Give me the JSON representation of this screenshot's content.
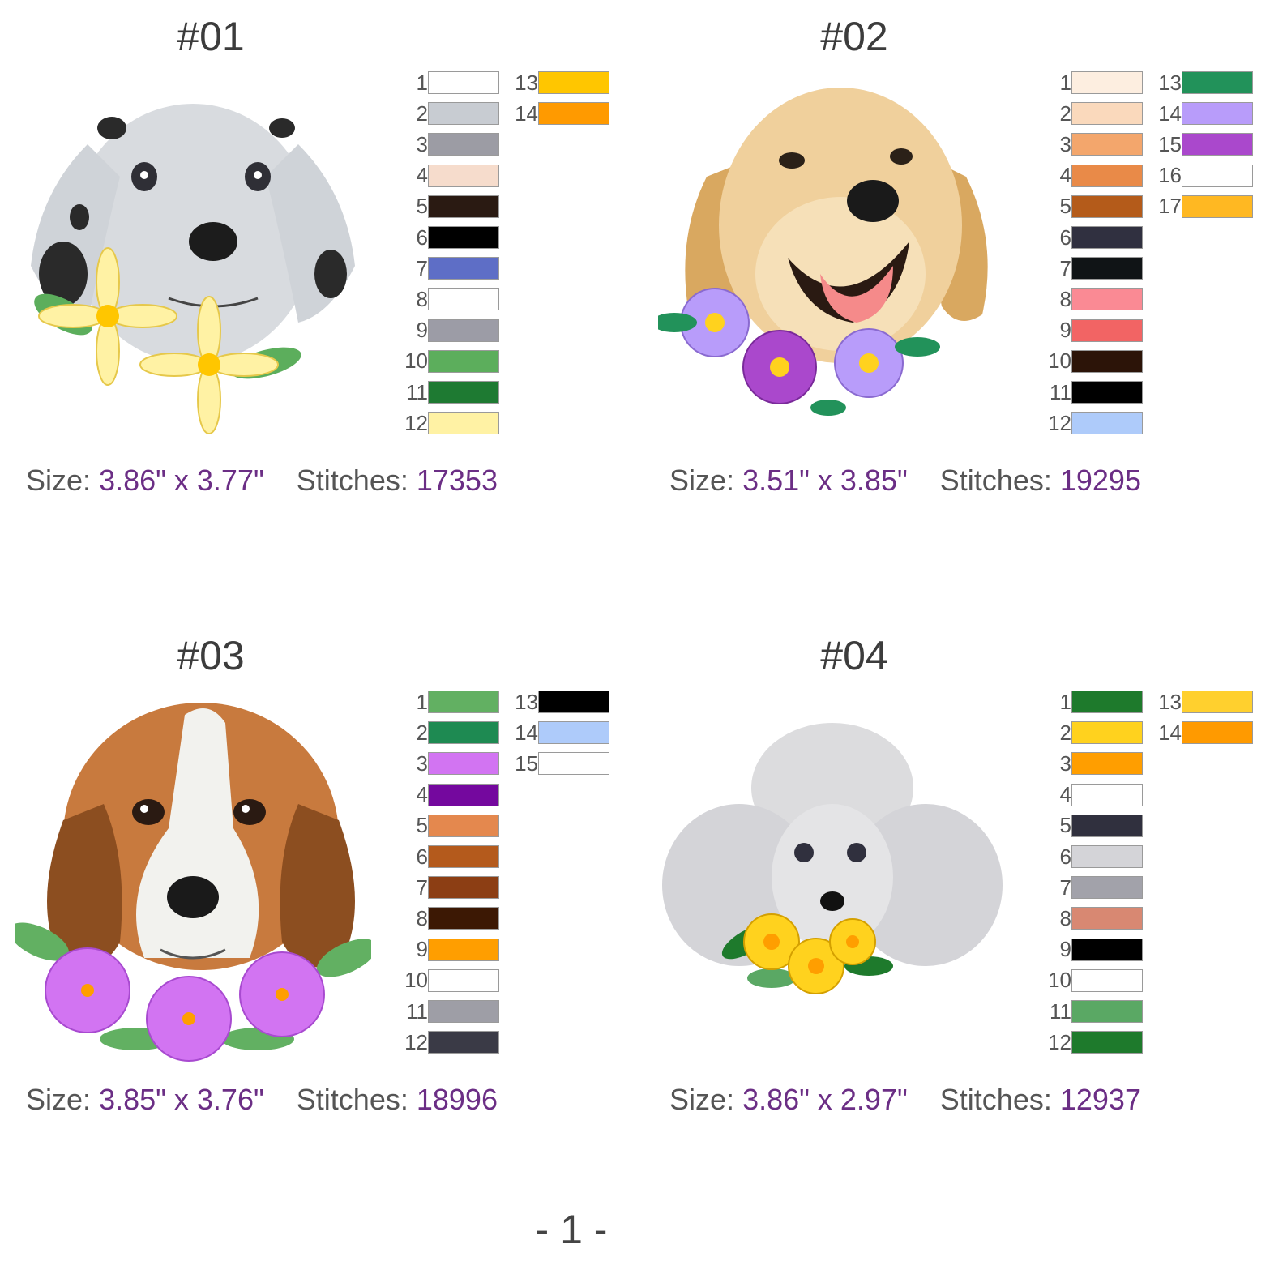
{
  "designs": [
    {
      "id": "#01",
      "art": "dalmatian-embroidery",
      "size_label": "Size:",
      "size_value": "3.86\" x 3.77\"",
      "stitches_label": "Stitches:",
      "stitches_value": "17353",
      "colors": [
        {
          "n": "1",
          "hex": "#ffffff"
        },
        {
          "n": "2",
          "hex": "#c8ccd2"
        },
        {
          "n": "3",
          "hex": "#9c9ca4"
        },
        {
          "n": "4",
          "hex": "#f6dccc"
        },
        {
          "n": "5",
          "hex": "#2a1a12"
        },
        {
          "n": "6",
          "hex": "#000000"
        },
        {
          "n": "7",
          "hex": "#5e6ec6"
        },
        {
          "n": "8",
          "hex": "#ffffff"
        },
        {
          "n": "9",
          "hex": "#9c9ca6"
        },
        {
          "n": "10",
          "hex": "#5cae5c"
        },
        {
          "n": "11",
          "hex": "#1e7a32"
        },
        {
          "n": "12",
          "hex": "#fff2a4"
        },
        {
          "n": "13",
          "hex": "#ffc600"
        },
        {
          "n": "14",
          "hex": "#ff9a00"
        }
      ]
    },
    {
      "id": "#02",
      "art": "golden-retriever-embroidery",
      "size_label": "Size:",
      "size_value": "3.51\" x 3.85\"",
      "stitches_label": "Stitches:",
      "stitches_value": "19295",
      "colors": [
        {
          "n": "1",
          "hex": "#fdeee0"
        },
        {
          "n": "2",
          "hex": "#fad9bc"
        },
        {
          "n": "3",
          "hex": "#f3a66c"
        },
        {
          "n": "4",
          "hex": "#e98a48"
        },
        {
          "n": "5",
          "hex": "#b45b1a"
        },
        {
          "n": "6",
          "hex": "#303040"
        },
        {
          "n": "7",
          "hex": "#101416"
        },
        {
          "n": "8",
          "hex": "#fa8a94"
        },
        {
          "n": "9",
          "hex": "#f26464"
        },
        {
          "n": "10",
          "hex": "#2c1408"
        },
        {
          "n": "11",
          "hex": "#000000"
        },
        {
          "n": "12",
          "hex": "#aecbfa"
        },
        {
          "n": "13",
          "hex": "#22925a"
        },
        {
          "n": "14",
          "hex": "#b89cfa"
        },
        {
          "n": "15",
          "hex": "#aa48cc"
        },
        {
          "n": "16",
          "hex": "#ffffff"
        },
        {
          "n": "17",
          "hex": "#ffb822"
        }
      ]
    },
    {
      "id": "#03",
      "art": "beagle-embroidery",
      "size_label": "Size:",
      "size_value": "3.85\" x 3.76\"",
      "stitches_label": "Stitches:",
      "stitches_value": "18996",
      "colors": [
        {
          "n": "1",
          "hex": "#62b062"
        },
        {
          "n": "2",
          "hex": "#1e8a52"
        },
        {
          "n": "3",
          "hex": "#d274f2"
        },
        {
          "n": "4",
          "hex": "#74089e"
        },
        {
          "n": "5",
          "hex": "#e4884e"
        },
        {
          "n": "6",
          "hex": "#b45a1c"
        },
        {
          "n": "7",
          "hex": "#8c3e14"
        },
        {
          "n": "8",
          "hex": "#3c1804"
        },
        {
          "n": "9",
          "hex": "#ff9e00"
        },
        {
          "n": "10",
          "hex": "#ffffff"
        },
        {
          "n": "11",
          "hex": "#9e9ea6"
        },
        {
          "n": "12",
          "hex": "#3a3a46"
        },
        {
          "n": "13",
          "hex": "#000000"
        },
        {
          "n": "14",
          "hex": "#aecbfa"
        },
        {
          "n": "15",
          "hex": "#ffffff"
        }
      ]
    },
    {
      "id": "#04",
      "art": "poodle-embroidery",
      "size_label": "Size:",
      "size_value": "3.86\" x 2.97\"",
      "stitches_label": "Stitches:",
      "stitches_value": "12937",
      "colors": [
        {
          "n": "1",
          "hex": "#1e7a2c"
        },
        {
          "n": "2",
          "hex": "#ffd21e"
        },
        {
          "n": "3",
          "hex": "#ff9e00"
        },
        {
          "n": "4",
          "hex": "#ffffff"
        },
        {
          "n": "5",
          "hex": "#30303e"
        },
        {
          "n": "6",
          "hex": "#d4d4d8"
        },
        {
          "n": "7",
          "hex": "#a2a2aa"
        },
        {
          "n": "8",
          "hex": "#d88872"
        },
        {
          "n": "9",
          "hex": "#000000"
        },
        {
          "n": "10",
          "hex": "#ffffff"
        },
        {
          "n": "11",
          "hex": "#5aa864"
        },
        {
          "n": "12",
          "hex": "#1e7a2c"
        },
        {
          "n": "13",
          "hex": "#ffd02e"
        },
        {
          "n": "14",
          "hex": "#ff9a00"
        }
      ]
    }
  ],
  "page_number": "- 1 -"
}
